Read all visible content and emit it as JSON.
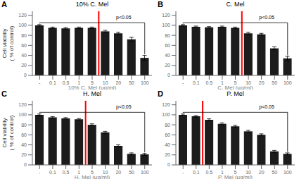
{
  "chart_data": [
    {
      "type": "bar",
      "title": "10% C. Mel",
      "panel_label": "A",
      "xlabel": "10% C. Mel  (μg/ml)",
      "ylabel": "Cell viability\n( % of control)",
      "categories": [
        "-",
        "0.1",
        "0.5",
        "1",
        "5",
        "10",
        "20",
        "50",
        "100"
      ],
      "values": [
        100,
        95,
        94,
        95,
        95,
        88,
        84,
        72,
        35
      ],
      "errors": [
        1.5,
        1.5,
        1.5,
        1.5,
        1.5,
        2,
        2,
        4,
        5
      ],
      "color": "#1c1c1c",
      "ylim": [
        0,
        128
      ],
      "yticks": [
        0,
        20,
        40,
        60,
        80,
        100,
        120
      ],
      "red_line": {
        "after": "5",
        "color": "#ff0000"
      },
      "bracket": {
        "from": "-",
        "to": "100",
        "value": 105,
        "label": "p<0.05"
      }
    },
    {
      "type": "bar",
      "title": "C. Mel",
      "panel_label": "B",
      "xlabel": "C. Mel  (μg/ml)",
      "categories": [
        "-",
        "0.1",
        "0.5",
        "1",
        "5",
        "10",
        "20",
        "50",
        "100"
      ],
      "values": [
        100,
        97,
        96,
        97,
        95,
        84,
        82,
        54,
        34
      ],
      "errors": [
        1.5,
        1.5,
        1.5,
        1.5,
        1.5,
        2,
        2,
        3,
        4
      ],
      "color": "#1c1c1c",
      "ylim": [
        0,
        128
      ],
      "yticks": [
        0,
        20,
        40,
        60,
        80,
        100,
        120
      ],
      "red_line": {
        "after": "5",
        "color": "#ff0000"
      },
      "bracket": {
        "from": "-",
        "to": "100",
        "value": 105,
        "label": "p<0.05"
      }
    },
    {
      "type": "bar",
      "title": "H. Mel",
      "panel_label": "C",
      "xlabel": "H. Mel  (μg/ml)",
      "ylabel": "Cell viability\n( % of control)",
      "categories": [
        "-",
        "0.1",
        "0.5",
        "1",
        "5",
        "10",
        "20",
        "50",
        "100"
      ],
      "values": [
        100,
        95,
        93,
        91,
        80,
        65,
        38,
        22,
        21
      ],
      "errors": [
        1.5,
        1.5,
        1.5,
        1.5,
        2,
        2,
        2,
        2,
        2
      ],
      "color": "#1c1c1c",
      "ylim": [
        0,
        128
      ],
      "yticks": [
        0,
        20,
        40,
        60,
        80,
        100,
        120
      ],
      "red_line": {
        "after": "1",
        "color": "#ff0000"
      },
      "bracket": {
        "from": "-",
        "to": "100",
        "value": 105,
        "label": "p<0.05"
      }
    },
    {
      "type": "bar",
      "title": "P. Mel",
      "panel_label": "D",
      "xlabel": "P. Mel  (μg/ml)",
      "categories": [
        "-",
        "0.1",
        "0.5",
        "1",
        "5",
        "10",
        "20",
        "50",
        "100"
      ],
      "values": [
        100,
        97,
        90,
        82,
        77,
        67,
        60,
        27,
        22
      ],
      "errors": [
        1.5,
        1.5,
        2,
        2,
        2,
        2,
        2,
        2,
        2
      ],
      "color": "#1c1c1c",
      "ylim": [
        0,
        128
      ],
      "yticks": [
        0,
        20,
        40,
        60,
        80,
        100,
        120
      ],
      "red_line": {
        "after": "0.1",
        "color": "#ff0000"
      },
      "bracket": {
        "from": "-",
        "to": "100",
        "value": 105,
        "label": "p<0.05"
      }
    }
  ]
}
